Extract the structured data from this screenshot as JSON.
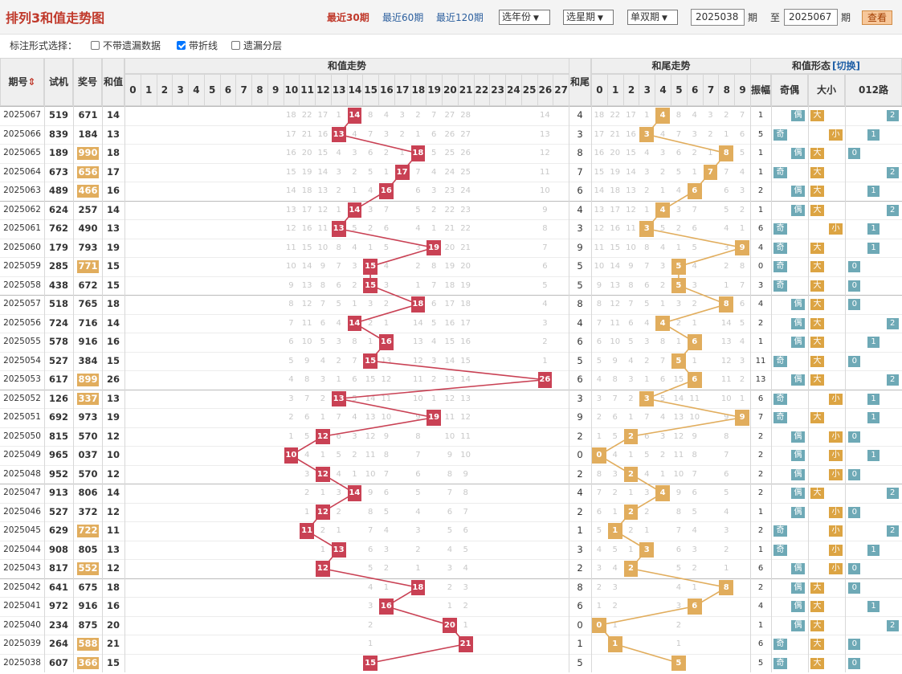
{
  "header": {
    "title": "排列3和值走势图",
    "links": [
      "最近30期",
      "最近60期",
      "最近120期"
    ],
    "select_year": "选年份",
    "select_period": "选星期",
    "select_parity": "单双期",
    "from_value": "2025038",
    "period_unit": "期",
    "to_label": "至",
    "to_value": "2025067",
    "query": "查看"
  },
  "options": {
    "label": "标注形式选择：",
    "items": [
      {
        "label": "不带遗漏数据",
        "checked": false
      },
      {
        "label": "带折线",
        "checked": true
      },
      {
        "label": "遗漏分层",
        "checked": false
      }
    ]
  },
  "columns": {
    "issue": "期号",
    "issue_sort": "⇕",
    "test": "试机",
    "prize": "奖号",
    "sum": "和值",
    "sum_trend": "和值走势",
    "tail": "和尾",
    "tail_trend": "和尾走势",
    "form": "和值形态",
    "switch": "[切换]",
    "amp": "振幅",
    "oddeven": "奇偶",
    "bigsmall": "大小",
    "road": "012路",
    "sum_axis": [
      0,
      1,
      2,
      3,
      4,
      5,
      6,
      7,
      8,
      9,
      10,
      11,
      12,
      13,
      14,
      15,
      16,
      17,
      18,
      19,
      20,
      21,
      22,
      23,
      24,
      25,
      26,
      27
    ],
    "tail_axis": [
      0,
      1,
      2,
      3,
      4,
      5,
      6,
      7,
      8,
      9
    ],
    "labels": {
      "odd": "奇",
      "even": "偶",
      "big": "大",
      "small": "小",
      "r0": "0",
      "r1": "1",
      "r2": "2"
    }
  },
  "colors": {
    "sum_marker": "#c94154",
    "tail_marker": "#e1ad5d",
    "tag": "#6ea9b6",
    "size_tag": "#dca443",
    "prize_hl": "#e1ad5d"
  },
  "chart_data": {
    "type": "table",
    "rows": [
      {
        "issue": "2025067",
        "test": "519",
        "prize": "671",
        "hl": false,
        "sum": 14,
        "amp": 1,
        "oe": "偶",
        "bs": "大"
      },
      {
        "issue": "2025066",
        "test": "839",
        "prize": "184",
        "hl": false,
        "sum": 13,
        "amp": 5,
        "oe": "奇",
        "bs": "小"
      },
      {
        "issue": "2025065",
        "test": "189",
        "prize": "990",
        "hl": true,
        "sum": 18,
        "amp": 1,
        "oe": "偶",
        "bs": "大"
      },
      {
        "issue": "2025064",
        "test": "673",
        "prize": "656",
        "hl": true,
        "sum": 17,
        "amp": 1,
        "oe": "奇",
        "bs": "大"
      },
      {
        "issue": "2025063",
        "test": "489",
        "prize": "466",
        "hl": true,
        "sum": 16,
        "amp": 2,
        "oe": "偶",
        "bs": "大"
      },
      {
        "issue": "2025062",
        "test": "624",
        "prize": "257",
        "hl": false,
        "sum": 14,
        "amp": 1,
        "oe": "偶",
        "bs": "大"
      },
      {
        "issue": "2025061",
        "test": "762",
        "prize": "490",
        "hl": false,
        "sum": 13,
        "amp": 6,
        "oe": "奇",
        "bs": "小"
      },
      {
        "issue": "2025060",
        "test": "179",
        "prize": "793",
        "hl": false,
        "sum": 19,
        "amp": 4,
        "oe": "奇",
        "bs": "大"
      },
      {
        "issue": "2025059",
        "test": "285",
        "prize": "771",
        "hl": true,
        "sum": 15,
        "amp": 0,
        "oe": "奇",
        "bs": "大"
      },
      {
        "issue": "2025058",
        "test": "438",
        "prize": "672",
        "hl": false,
        "sum": 15,
        "amp": 3,
        "oe": "奇",
        "bs": "大"
      },
      {
        "issue": "2025057",
        "test": "518",
        "prize": "765",
        "hl": false,
        "sum": 18,
        "amp": 4,
        "oe": "偶",
        "bs": "大"
      },
      {
        "issue": "2025056",
        "test": "724",
        "prize": "716",
        "hl": false,
        "sum": 14,
        "amp": 2,
        "oe": "偶",
        "bs": "大"
      },
      {
        "issue": "2025055",
        "test": "578",
        "prize": "916",
        "hl": false,
        "sum": 16,
        "amp": 1,
        "oe": "偶",
        "bs": "大"
      },
      {
        "issue": "2025054",
        "test": "527",
        "prize": "384",
        "hl": false,
        "sum": 15,
        "amp": 11,
        "oe": "奇",
        "bs": "大"
      },
      {
        "issue": "2025053",
        "test": "617",
        "prize": "899",
        "hl": true,
        "sum": 26,
        "amp": 13,
        "oe": "偶",
        "bs": "大"
      },
      {
        "issue": "2025052",
        "test": "126",
        "prize": "337",
        "hl": true,
        "sum": 13,
        "amp": 6,
        "oe": "奇",
        "bs": "小"
      },
      {
        "issue": "2025051",
        "test": "692",
        "prize": "973",
        "hl": false,
        "sum": 19,
        "amp": 7,
        "oe": "奇",
        "bs": "大"
      },
      {
        "issue": "2025050",
        "test": "815",
        "prize": "570",
        "hl": false,
        "sum": 12,
        "amp": 2,
        "oe": "偶",
        "bs": "小"
      },
      {
        "issue": "2025049",
        "test": "965",
        "prize": "037",
        "hl": false,
        "sum": 10,
        "amp": 2,
        "oe": "偶",
        "bs": "小"
      },
      {
        "issue": "2025048",
        "test": "952",
        "prize": "570",
        "hl": false,
        "sum": 12,
        "amp": 2,
        "oe": "偶",
        "bs": "小"
      },
      {
        "issue": "2025047",
        "test": "913",
        "prize": "806",
        "hl": false,
        "sum": 14,
        "amp": 2,
        "oe": "偶",
        "bs": "大"
      },
      {
        "issue": "2025046",
        "test": "527",
        "prize": "372",
        "hl": false,
        "sum": 12,
        "amp": 1,
        "oe": "偶",
        "bs": "小"
      },
      {
        "issue": "2025045",
        "test": "629",
        "prize": "722",
        "hl": true,
        "sum": 11,
        "amp": 2,
        "oe": "奇",
        "bs": "小"
      },
      {
        "issue": "2025044",
        "test": "908",
        "prize": "805",
        "hl": false,
        "sum": 13,
        "amp": 1,
        "oe": "奇",
        "bs": "小"
      },
      {
        "issue": "2025043",
        "test": "817",
        "prize": "552",
        "hl": true,
        "sum": 12,
        "amp": 6,
        "oe": "偶",
        "bs": "小"
      },
      {
        "issue": "2025042",
        "test": "641",
        "prize": "675",
        "hl": false,
        "sum": 18,
        "amp": 2,
        "oe": "偶",
        "bs": "大"
      },
      {
        "issue": "2025041",
        "test": "972",
        "prize": "916",
        "hl": false,
        "sum": 16,
        "amp": 4,
        "oe": "偶",
        "bs": "大"
      },
      {
        "issue": "2025040",
        "test": "234",
        "prize": "875",
        "hl": false,
        "sum": 20,
        "amp": 1,
        "oe": "偶",
        "bs": "大"
      },
      {
        "issue": "2025039",
        "test": "264",
        "prize": "588",
        "hl": true,
        "sum": 21,
        "amp": 6,
        "oe": "奇",
        "bs": "大"
      },
      {
        "issue": "2025038",
        "test": "607",
        "prize": "366",
        "hl": true,
        "sum": 15,
        "amp": 5,
        "oe": "奇",
        "bs": "大"
      }
    ]
  }
}
